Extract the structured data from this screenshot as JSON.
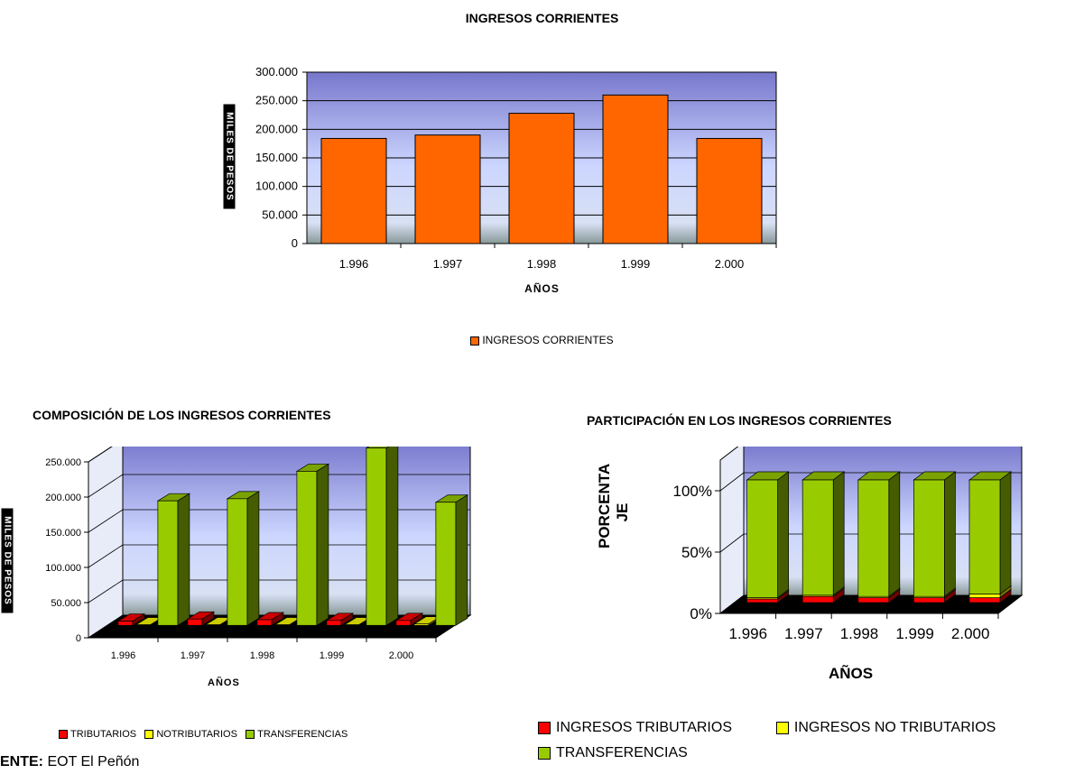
{
  "chart_data": [
    {
      "type": "bar",
      "title": "INGRESOS CORRIENTES",
      "xlabel": "AÑOS",
      "ylabel": "MILES DE PESOS",
      "categories": [
        "1.996",
        "1.997",
        "1.998",
        "1.999",
        "2.000"
      ],
      "yticks": [
        "0",
        "50.000",
        "100.000",
        "150.000",
        "200.000",
        "250.000",
        "300.000"
      ],
      "ylim": [
        0,
        300000
      ],
      "series": [
        {
          "name": "INGRESOS CORRIENTES",
          "color": "#FF6600",
          "values": [
            184000,
            190000,
            228000,
            260000,
            184000
          ]
        }
      ],
      "legend_position": "bottom",
      "grid": true
    },
    {
      "type": "bar",
      "title": "COMPOSICIÓN DE LOS INGRESOS CORRIENTES",
      "xlabel": "AÑOS",
      "ylabel": "MILES DE PESOS",
      "categories": [
        "1.996",
        "1.997",
        "1.998",
        "1.999",
        "2.000"
      ],
      "yticks": [
        "0",
        "50.000",
        "100.000",
        "150.000",
        "200.000",
        "250.000"
      ],
      "ylim": [
        0,
        250000
      ],
      "series": [
        {
          "name": "TRIBUTARIOS",
          "color": "#FF0000",
          "values": [
            6000,
            9000,
            8000,
            7000,
            7000
          ]
        },
        {
          "name": "NOTRIBUTARIOS",
          "color": "#FFFF00",
          "values": [
            1000,
            1000,
            1000,
            1000,
            2000
          ]
        },
        {
          "name": "TRANSFERENCIAS",
          "color": "#99CC00",
          "values": [
            177000,
            180000,
            219000,
            252000,
            175000
          ]
        }
      ],
      "legend_position": "bottom",
      "grid": true
    },
    {
      "type": "bar",
      "stacked": "percent",
      "title": "PARTICIPACIÓN EN LOS INGRESOS CORRIENTES",
      "xlabel": "AÑOS",
      "ylabel": "PORCENTA JE",
      "categories": [
        "1.996",
        "1.997",
        "1.998",
        "1.999",
        "2.000"
      ],
      "yticks": [
        "0%",
        "50%",
        "100%"
      ],
      "ylim": [
        0,
        100
      ],
      "series": [
        {
          "name": "INGRESOS TRIBUTARIOS",
          "color": "#FF0000",
          "values": [
            3,
            5,
            4,
            4,
            4
          ]
        },
        {
          "name": "INGRESOS NO TRIBUTARIOS",
          "color": "#FFFF00",
          "values": [
            1,
            1,
            1,
            1,
            3
          ]
        },
        {
          "name": "TRANSFERENCIAS",
          "color": "#99CC00",
          "values": [
            96,
            94,
            95,
            95,
            93
          ]
        }
      ],
      "legend_position": "bottom",
      "grid": true
    }
  ],
  "footer": {
    "source_label": "ENTE:",
    "source_text": " EOT El Peñón"
  }
}
